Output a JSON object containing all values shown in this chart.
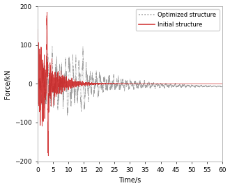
{
  "title": "",
  "xlabel": "Time/s",
  "ylabel": "Force/kN",
  "xlim": [
    0,
    60
  ],
  "ylim": [
    -200,
    200
  ],
  "xticks": [
    0,
    5,
    10,
    15,
    20,
    25,
    30,
    35,
    40,
    45,
    50,
    55,
    60
  ],
  "yticks": [
    -200,
    -100,
    0,
    100,
    200
  ],
  "legend_labels": [
    "Optimized structure",
    "Initial structure"
  ],
  "initial_color": "#cc2222",
  "optimized_color": "#888888",
  "background_color": "#ffffff",
  "seed": 7,
  "duration": 60,
  "fs": 200
}
